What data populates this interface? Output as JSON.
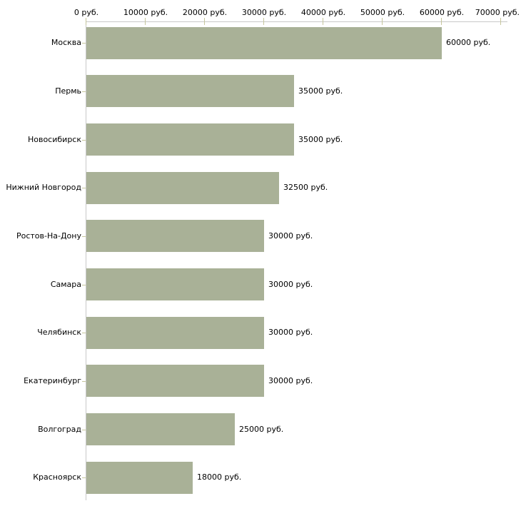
{
  "chart_data": {
    "type": "bar",
    "orientation": "horizontal",
    "title": "",
    "unit": "руб.",
    "categories": [
      "Москва",
      "Пермь",
      "Новосибирск",
      "Нижний Новгород",
      "Ростов-На-Дону",
      "Самара",
      "Челябинск",
      "Екатеринбург",
      "Волгоград",
      "Красноярск"
    ],
    "values": [
      60000,
      35000,
      35000,
      32500,
      30000,
      30000,
      30000,
      30000,
      25000,
      18000
    ],
    "value_labels": [
      "60000 руб.",
      "35000 руб.",
      "35000 руб.",
      "32500 руб.",
      "30000 руб.",
      "30000 руб.",
      "30000 руб.",
      "30000 руб.",
      "25000 руб.",
      "18000 руб."
    ],
    "x_axis": {
      "position": "top",
      "min": 0,
      "max": 70000,
      "tick_step": 10000,
      "ticks": [
        0,
        10000,
        20000,
        30000,
        40000,
        50000,
        60000,
        70000
      ],
      "tick_labels": [
        "0 руб.",
        "10000 руб.",
        "20000 руб.",
        "30000 руб.",
        "40000 руб.",
        "50000 руб.",
        "60000 руб.",
        "70000 руб."
      ]
    },
    "grid": false,
    "legend": false,
    "colors": {
      "bar": "#a9b197",
      "tick_mark": "#c6c69c",
      "axis_line": "#c8c8c8",
      "text": "#000000",
      "background": "#ffffff"
    }
  }
}
